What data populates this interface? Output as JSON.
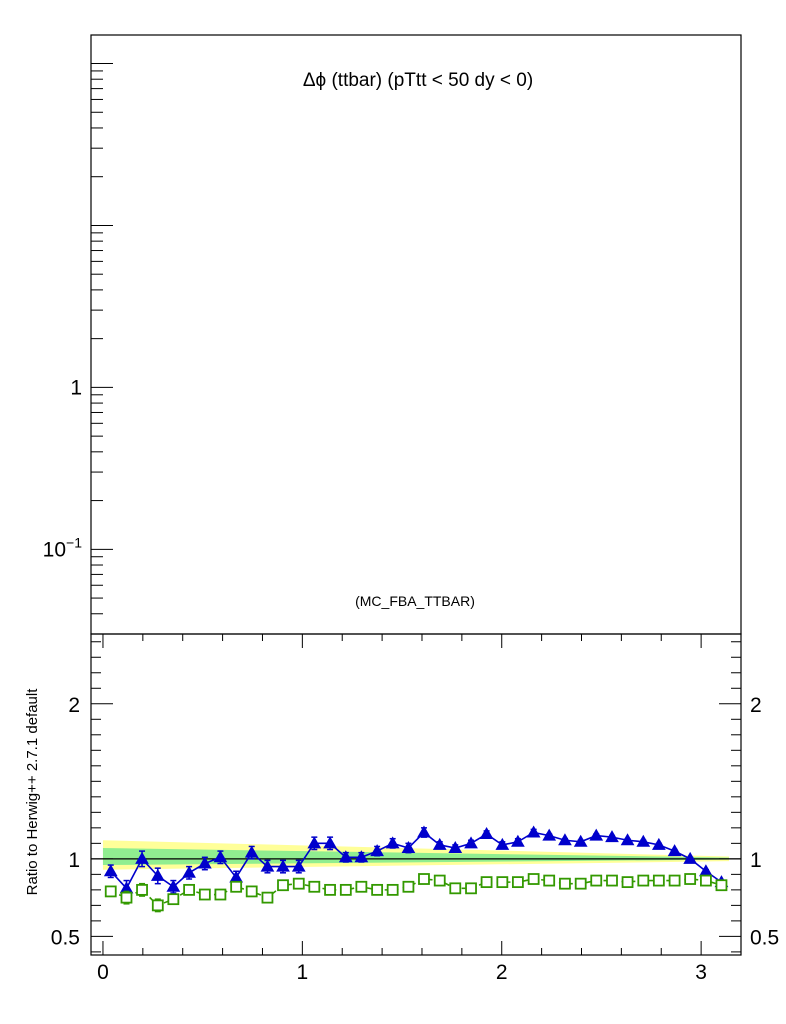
{
  "chart_data": [
    {
      "type": "line",
      "panel": "main",
      "title_symbol": "Δϕ",
      "title_rest": " (ttbar) (pTtt < 50 dy < 0)",
      "annotation": "(MC_FBA_TTBAR)",
      "y_scale": "log",
      "ylim": [
        0.03,
        150
      ],
      "y_tick_labels": [
        {
          "value": 1,
          "base": "1",
          "exp": ""
        },
        {
          "value": 0.1,
          "base": "10",
          "exp": "−1"
        }
      ],
      "series": []
    },
    {
      "type": "line",
      "panel": "ratio",
      "ylabel": "Ratio to Herwig++ 2.7.1 default",
      "xlim": [
        -0.06,
        3.2
      ],
      "ylim": [
        0.38,
        2.45
      ],
      "x_ticks": [
        0,
        1,
        2,
        3
      ],
      "x_tick_labels": [
        "0",
        "1",
        "2",
        "3"
      ],
      "y_ticks": [
        0.5,
        1,
        2
      ],
      "y_tick_labels": [
        "0.5",
        "1",
        "2"
      ],
      "reference_line": 1.0,
      "bands": [
        {
          "color": "#ffff99",
          "x": [
            0,
            3.14
          ],
          "lower": [
            0.93,
            0.985
          ],
          "upper": [
            1.12,
            1.015
          ]
        },
        {
          "color": "#90ee90",
          "x": [
            0,
            3.14
          ],
          "lower": [
            0.96,
            0.995
          ],
          "upper": [
            1.07,
            1.008
          ]
        }
      ],
      "series": [
        {
          "color": "#0000cc",
          "marker": "triangle",
          "line": "solid",
          "x": [
            0.039,
            0.118,
            0.196,
            0.275,
            0.353,
            0.432,
            0.511,
            0.589,
            0.668,
            0.746,
            0.825,
            0.903,
            0.982,
            1.06,
            1.139,
            1.218,
            1.296,
            1.375,
            1.453,
            1.532,
            1.61,
            1.689,
            1.767,
            1.846,
            1.924,
            2.003,
            2.081,
            2.16,
            2.238,
            2.317,
            2.396,
            2.474,
            2.553,
            2.631,
            2.71,
            2.788,
            2.867,
            2.945,
            3.024,
            3.102
          ],
          "y": [
            0.92,
            0.81,
            1.0,
            0.89,
            0.82,
            0.91,
            0.97,
            1.01,
            0.88,
            1.04,
            0.95,
            0.95,
            0.95,
            1.1,
            1.1,
            1.01,
            1.01,
            1.05,
            1.1,
            1.07,
            1.17,
            1.09,
            1.07,
            1.1,
            1.16,
            1.09,
            1.11,
            1.17,
            1.15,
            1.12,
            1.11,
            1.15,
            1.14,
            1.12,
            1.11,
            1.09,
            1.05,
            1.0,
            0.92,
            0.85
          ],
          "err": [
            0.04,
            0.05,
            0.05,
            0.05,
            0.04,
            0.04,
            0.04,
            0.04,
            0.04,
            0.04,
            0.04,
            0.04,
            0.04,
            0.04,
            0.04,
            0.03,
            0.03,
            0.03,
            0.03,
            0.03,
            0.03,
            0.02,
            0.02,
            0.02,
            0.02,
            0.02,
            0.02,
            0.02,
            0.01,
            0.01,
            0.01,
            0.01,
            0.01,
            0.01,
            0.01,
            0.01,
            0.01,
            0.01,
            0.01,
            0.01
          ]
        },
        {
          "color": "#339900",
          "marker": "open-square",
          "line": "dashed",
          "x": [
            0.039,
            0.118,
            0.196,
            0.275,
            0.353,
            0.432,
            0.511,
            0.589,
            0.668,
            0.746,
            0.825,
            0.903,
            0.982,
            1.06,
            1.139,
            1.218,
            1.296,
            1.375,
            1.453,
            1.532,
            1.61,
            1.689,
            1.767,
            1.846,
            1.924,
            2.003,
            2.081,
            2.16,
            2.238,
            2.317,
            2.396,
            2.474,
            2.553,
            2.631,
            2.71,
            2.788,
            2.867,
            2.945,
            3.024,
            3.102
          ],
          "y": [
            0.79,
            0.75,
            0.8,
            0.7,
            0.74,
            0.8,
            0.77,
            0.77,
            0.82,
            0.79,
            0.75,
            0.83,
            0.84,
            0.82,
            0.8,
            0.8,
            0.82,
            0.8,
            0.8,
            0.82,
            0.87,
            0.86,
            0.81,
            0.81,
            0.85,
            0.85,
            0.85,
            0.87,
            0.86,
            0.84,
            0.84,
            0.86,
            0.86,
            0.85,
            0.86,
            0.86,
            0.86,
            0.87,
            0.86,
            0.83
          ],
          "err": [
            0.03,
            0.04,
            0.04,
            0.04,
            0.03,
            0.03,
            0.03,
            0.03,
            0.03,
            0.03,
            0.03,
            0.03,
            0.03,
            0.02,
            0.02,
            0.02,
            0.02,
            0.02,
            0.02,
            0.02,
            0.02,
            0.02,
            0.02,
            0.02,
            0.01,
            0.01,
            0.01,
            0.01,
            0.01,
            0.01,
            0.01,
            0.01,
            0.01,
            0.01,
            0.01,
            0.01,
            0.01,
            0.01,
            0.01,
            0.01
          ]
        }
      ]
    }
  ]
}
